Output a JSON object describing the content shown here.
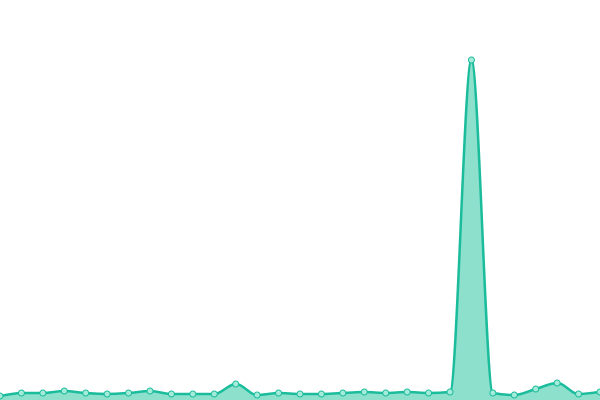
{
  "chart_data": {
    "type": "area",
    "values": [
      4,
      7,
      7,
      9,
      7,
      6,
      7,
      9,
      6,
      6,
      6,
      16,
      5,
      7,
      6,
      6,
      7,
      8,
      7,
      8,
      7,
      8,
      340,
      7,
      5,
      11,
      17,
      6,
      8
    ],
    "color": "#1abc9c",
    "fill": "#8ce0cc"
  }
}
